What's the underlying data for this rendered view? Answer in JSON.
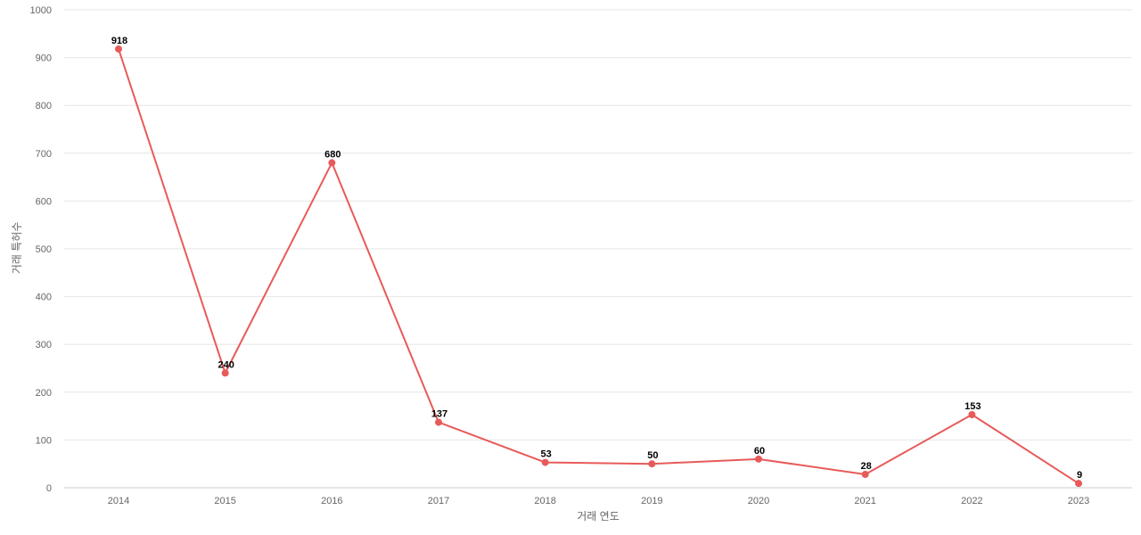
{
  "chart_data": {
    "type": "line",
    "title": "",
    "xlabel": "거래 연도",
    "ylabel": "거래 특허수",
    "categories": [
      "2014",
      "2015",
      "2016",
      "2017",
      "2018",
      "2019",
      "2020",
      "2021",
      "2022",
      "2023"
    ],
    "series": [
      {
        "values": [
          918,
          240,
          680,
          137,
          53,
          50,
          60,
          28,
          153,
          9
        ]
      }
    ],
    "ylim": [
      0,
      1000
    ],
    "yticks": [
      0,
      100,
      200,
      300,
      400,
      500,
      600,
      700,
      800,
      900,
      1000
    ],
    "grid": true,
    "legend": "none",
    "colors": {
      "series": "#e85a5a"
    }
  }
}
